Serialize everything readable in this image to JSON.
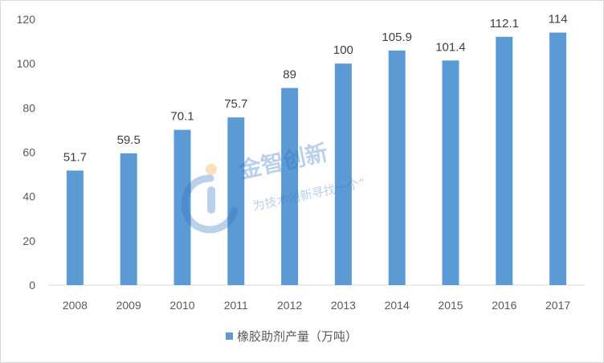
{
  "chart_data": {
    "type": "bar",
    "categories": [
      "2008",
      "2009",
      "2010",
      "2011",
      "2012",
      "2013",
      "2014",
      "2015",
      "2016",
      "2017"
    ],
    "values": [
      51.7,
      59.5,
      70.1,
      75.7,
      89,
      100,
      105.9,
      101.4,
      112.1,
      114
    ],
    "value_labels": [
      "51.7",
      "59.5",
      "70.1",
      "75.7",
      "89",
      "100",
      "105.9",
      "101.4",
      "112.1",
      "114"
    ],
    "series": [
      {
        "name": "橡胶助剂产量（万吨）"
      }
    ],
    "ylim": [
      0,
      120
    ],
    "yticks": [
      "0",
      "20",
      "40",
      "60",
      "80",
      "100",
      "120"
    ],
    "grid": false,
    "legend_position": "bottom",
    "bar_color": "#5b9bd5"
  },
  "watermark": {
    "title": "金智创新",
    "subtitle": "为技术创新寻找一个“"
  }
}
